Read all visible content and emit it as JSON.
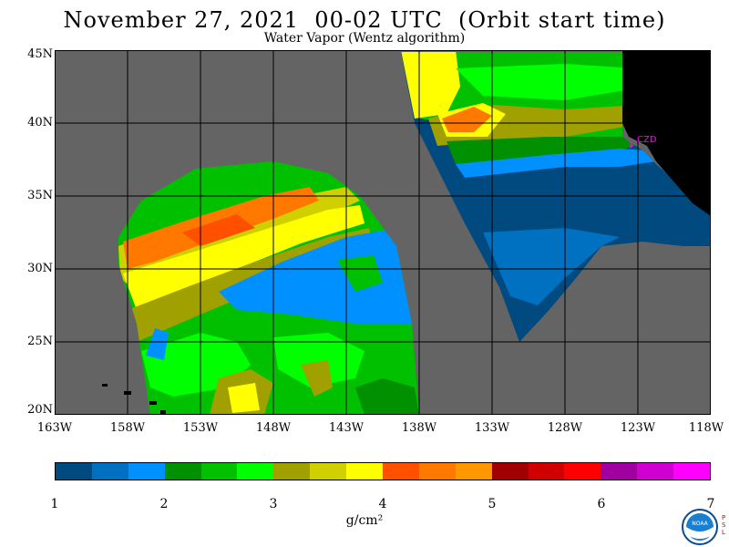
{
  "header": {
    "title": "November 27, 2021  00-02 UTC  (Orbit start time)",
    "subtitle": "Water Vapor (Wentz algorithm)"
  },
  "map": {
    "latitude_labels": [
      "45N",
      "40N",
      "35N",
      "30N",
      "25N",
      "20N"
    ],
    "longitude_labels": [
      "163W",
      "158W",
      "153W",
      "148W",
      "143W",
      "138W",
      "133W",
      "128W",
      "123W",
      "118W"
    ],
    "station_label": "CZD",
    "colors": {
      "no_data": "#646464",
      "land": "#000000",
      "grid": "#000000",
      "station": "#ff00ff"
    }
  },
  "colorbar": {
    "tick_labels": [
      "1",
      "2",
      "3",
      "4",
      "5",
      "6",
      "7"
    ],
    "units_label": "g/cm²",
    "colors": [
      "#004a80",
      "#0070c0",
      "#0090ff",
      "#009000",
      "#00c000",
      "#00ff00",
      "#a0a000",
      "#d0d000",
      "#ffff00",
      "#ff5000",
      "#ff7800",
      "#ff9800",
      "#a00000",
      "#d00000",
      "#ff0000",
      "#a000a0",
      "#d000d0",
      "#ff00ff"
    ]
  },
  "logo": {
    "text": "NOAA",
    "side_text": "P S L"
  }
}
